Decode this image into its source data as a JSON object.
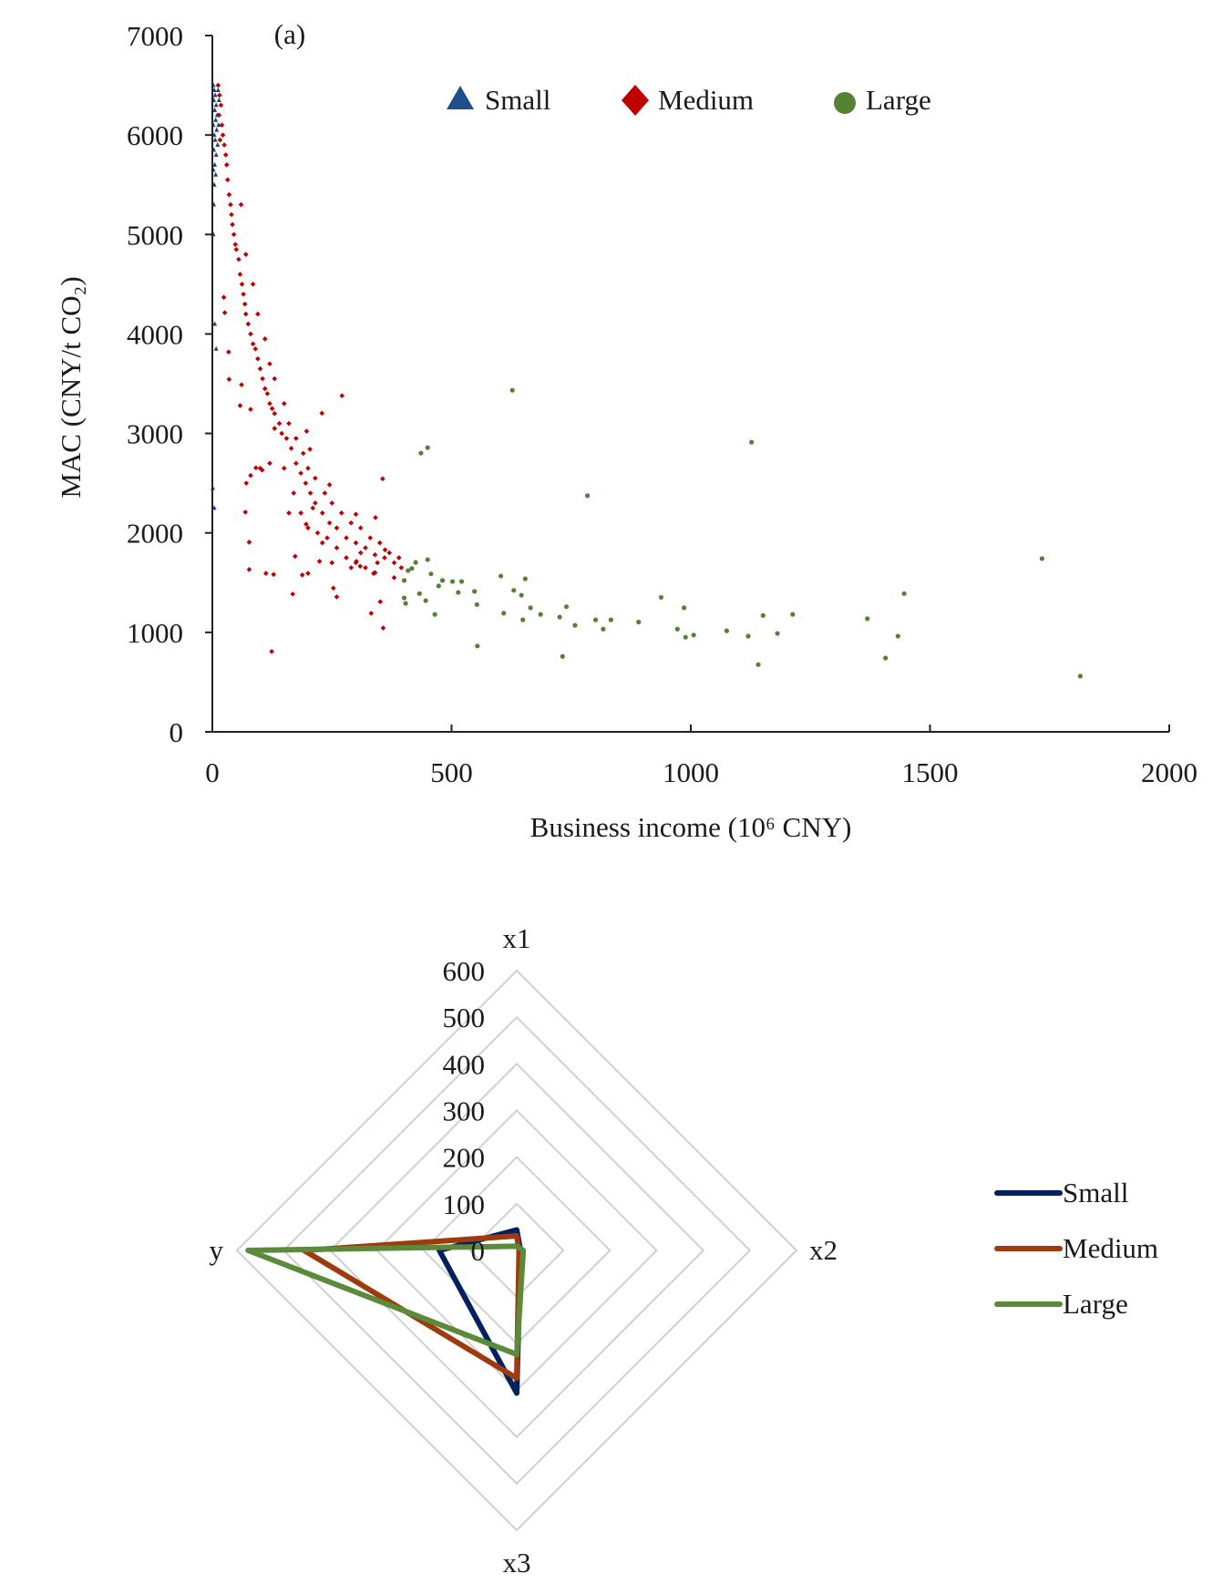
{
  "chart_data": [
    {
      "type": "scatter",
      "panel_label": "(a)",
      "xlabel": "Business income (10⁶ CNY)",
      "ylabel": "MAC (CNY/t CO₂)",
      "xlim": [
        0,
        2000
      ],
      "ylim": [
        0,
        7000
      ],
      "xticks": [
        "0",
        "500",
        "1000",
        "1500",
        "2000"
      ],
      "yticks": [
        "0",
        "1000",
        "2000",
        "3000",
        "4000",
        "5000",
        "6000",
        "7000"
      ],
      "grid": false,
      "legend_position": "top",
      "series": [
        {
          "name": "Small",
          "color": "#1f3f7a",
          "marker": "triangle",
          "points": [
            [
              2,
              6500
            ],
            [
              4,
              6450
            ],
            [
              6,
              6400
            ],
            [
              3,
              6350
            ],
            [
              8,
              6300
            ],
            [
              5,
              6250
            ],
            [
              10,
              6200
            ],
            [
              7,
              6150
            ],
            [
              2,
              6100
            ],
            [
              9,
              6050
            ],
            [
              4,
              6000
            ],
            [
              6,
              5950
            ],
            [
              11,
              5900
            ],
            [
              3,
              5850
            ],
            [
              8,
              5800
            ],
            [
              5,
              5700
            ],
            [
              2,
              5650
            ],
            [
              7,
              5600
            ],
            [
              4,
              5500
            ],
            [
              3,
              5300
            ],
            [
              2,
              5000
            ],
            [
              5,
              4100
            ],
            [
              8,
              3850
            ],
            [
              1,
              2450
            ],
            [
              4,
              2250
            ],
            [
              12,
              6450
            ],
            [
              14,
              6350
            ],
            [
              13,
              6100
            ]
          ]
        },
        {
          "name": "Medium",
          "color": "#c00000",
          "marker": "diamond",
          "points": [
            [
              12,
              6500
            ],
            [
              15,
              6400
            ],
            [
              18,
              6300
            ],
            [
              14,
              6200
            ],
            [
              20,
              6100
            ],
            [
              22,
              6000
            ],
            [
              16,
              5950
            ],
            [
              25,
              5900
            ],
            [
              28,
              5800
            ],
            [
              30,
              5700
            ],
            [
              32,
              5550
            ],
            [
              35,
              5400
            ],
            [
              38,
              5300
            ],
            [
              40,
              5200
            ],
            [
              42,
              5100
            ],
            [
              45,
              5000
            ],
            [
              48,
              4900
            ],
            [
              50,
              4850
            ],
            [
              55,
              4750
            ],
            [
              58,
              4600
            ],
            [
              62,
              4500
            ],
            [
              65,
              4400
            ],
            [
              68,
              4300
            ],
            [
              70,
              4200
            ],
            [
              75,
              4100
            ],
            [
              80,
              4000
            ],
            [
              85,
              3900
            ],
            [
              90,
              3850
            ],
            [
              95,
              3750
            ],
            [
              100,
              3650
            ],
            [
              105,
              3550
            ],
            [
              110,
              3450
            ],
            [
              115,
              3400
            ],
            [
              120,
              3300
            ],
            [
              125,
              3250
            ],
            [
              130,
              3200
            ],
            [
              140,
              3100
            ],
            [
              145,
              3000
            ],
            [
              155,
              2950
            ],
            [
              165,
              2850
            ],
            [
              175,
              2700
            ],
            [
              185,
              2600
            ],
            [
              195,
              2500
            ],
            [
              205,
              2400
            ],
            [
              215,
              2300
            ],
            [
              230,
              2200
            ],
            [
              245,
              2100
            ],
            [
              260,
              2050
            ],
            [
              280,
              1950
            ],
            [
              300,
              1900
            ],
            [
              320,
              1850
            ],
            [
              340,
              1780
            ],
            [
              360,
              1750
            ],
            [
              380,
              1700
            ],
            [
              395,
              1650
            ],
            [
              271,
              3379
            ],
            [
              229,
              3203
            ],
            [
              197,
              3022
            ],
            [
              204,
              2841
            ],
            [
              356,
              2544
            ],
            [
              80,
              2577
            ],
            [
              69,
              2209
            ],
            [
              77,
              1907
            ],
            [
              77,
              1632
            ],
            [
              112,
              1593
            ],
            [
              128,
              1582
            ],
            [
              124,
              808
            ],
            [
              168,
              1385
            ],
            [
              188,
              1577
            ],
            [
              200,
              1593
            ],
            [
              253,
              1445
            ],
            [
              260,
              1357
            ],
            [
              332,
              1192
            ],
            [
              351,
              1308
            ],
            [
              357,
              1044
            ],
            [
              337,
              1593
            ],
            [
              24,
              4368
            ],
            [
              26,
              4214
            ],
            [
              34,
              3819
            ],
            [
              35,
              3544
            ],
            [
              58,
              3280
            ],
            [
              61,
              3489
            ],
            [
              80,
              3242
            ],
            [
              104,
              2632
            ],
            [
              91,
              2654
            ],
            [
              71,
              2500
            ],
            [
              173,
              1764
            ],
            [
              224,
              1714
            ],
            [
              301,
              1714
            ],
            [
              309,
              1665
            ],
            [
              361,
              1830
            ],
            [
              341,
              2154
            ],
            [
              300,
              2187
            ],
            [
              245,
              2484
            ],
            [
              196,
              2088
            ],
            [
              60,
              5300
            ],
            [
              70,
              4800
            ],
            [
              85,
              4500
            ],
            [
              95,
              4200
            ],
            [
              110,
              3950
            ],
            [
              120,
              3700
            ],
            [
              130,
              3550
            ],
            [
              150,
              3300
            ],
            [
              160,
              3100
            ],
            [
              175,
              2950
            ],
            [
              190,
              2800
            ],
            [
              200,
              2650
            ],
            [
              215,
              2550
            ],
            [
              235,
              2400
            ],
            [
              250,
              2300
            ],
            [
              270,
              2200
            ],
            [
              290,
              2100
            ],
            [
              310,
              2050
            ],
            [
              330,
              1950
            ],
            [
              350,
              1900
            ],
            [
              370,
              1800
            ],
            [
              390,
              1750
            ],
            [
              150,
              2650
            ],
            [
              170,
              2400
            ],
            [
              185,
              2200
            ],
            [
              200,
              2050
            ],
            [
              220,
              2000
            ],
            [
              240,
              1950
            ],
            [
              260,
              1850
            ],
            [
              280,
              1750
            ],
            [
              300,
              1700
            ],
            [
              320,
              1650
            ],
            [
              340,
              1600
            ],
            [
              120,
              2700
            ],
            [
              100,
              2650
            ],
            [
              130,
              3050
            ],
            [
              160,
              2200
            ],
            [
              210,
              2250
            ],
            [
              230,
              1900
            ],
            [
              250,
              1700
            ],
            [
              290,
              1650
            ],
            [
              310,
              1800
            ],
            [
              345,
              1700
            ],
            [
              380,
              1550
            ]
          ]
        },
        {
          "name": "Large",
          "color": "#548235",
          "marker": "circle",
          "points": [
            [
              627,
              3434
            ],
            [
              436,
              2802
            ],
            [
              450,
              2857
            ],
            [
              784,
              2374
            ],
            [
              1127,
              2912
            ],
            [
              1734,
              1742
            ],
            [
              1814,
              560
            ],
            [
              1446,
              1390
            ],
            [
              1433,
              962
            ],
            [
              1407,
              742
            ],
            [
              1369,
              1137
            ],
            [
              1213,
              1181
            ],
            [
              1181,
              989
            ],
            [
              1151,
              1170
            ],
            [
              1141,
              676
            ],
            [
              1120,
              962
            ],
            [
              1075,
              1016
            ],
            [
              1006,
              973
            ],
            [
              989,
              951
            ],
            [
              986,
              1247
            ],
            [
              972,
              1033
            ],
            [
              938,
              1352
            ],
            [
              891,
              1104
            ],
            [
              833,
              1126
            ],
            [
              817,
              1033
            ],
            [
              801,
              1126
            ],
            [
              758,
              1071
            ],
            [
              740,
              1258
            ],
            [
              732,
              758
            ],
            [
              726,
              1154
            ],
            [
              686,
              1181
            ],
            [
              665,
              1247
            ],
            [
              654,
              1538
            ],
            [
              649,
              1126
            ],
            [
              646,
              1374
            ],
            [
              630,
              1423
            ],
            [
              609,
              1192
            ],
            [
              603,
              1566
            ],
            [
              554,
              863
            ],
            [
              553,
              1280
            ],
            [
              548,
              1412
            ],
            [
              521,
              1511
            ],
            [
              514,
              1401
            ],
            [
              502,
              1511
            ],
            [
              481,
              1522
            ],
            [
              473,
              1467
            ],
            [
              465,
              1181
            ],
            [
              457,
              1588
            ],
            [
              450,
              1731
            ],
            [
              446,
              1319
            ],
            [
              433,
              1390
            ],
            [
              425,
              1703
            ],
            [
              409,
              1621
            ],
            [
              404,
              1291
            ],
            [
              401,
              1522
            ],
            [
              401,
              1346
            ],
            [
              417,
              1643
            ]
          ]
        }
      ]
    },
    {
      "type": "radar",
      "axes": [
        "x1",
        "x2",
        "x3",
        "y"
      ],
      "rlim": [
        0,
        600
      ],
      "rticks": [
        "0",
        "100",
        "200",
        "300",
        "400",
        "500",
        "600"
      ],
      "legend_position": "right",
      "series": [
        {
          "name": "Small",
          "color": "#002060",
          "values": [
            44,
            8,
            306,
            166
          ]
        },
        {
          "name": "Medium",
          "color": "#9e3b0e",
          "values": [
            31,
            5,
            274,
            456
          ]
        },
        {
          "name": "Large",
          "color": "#5a8a3a",
          "values": [
            9,
            14,
            223,
            576
          ]
        }
      ]
    }
  ]
}
